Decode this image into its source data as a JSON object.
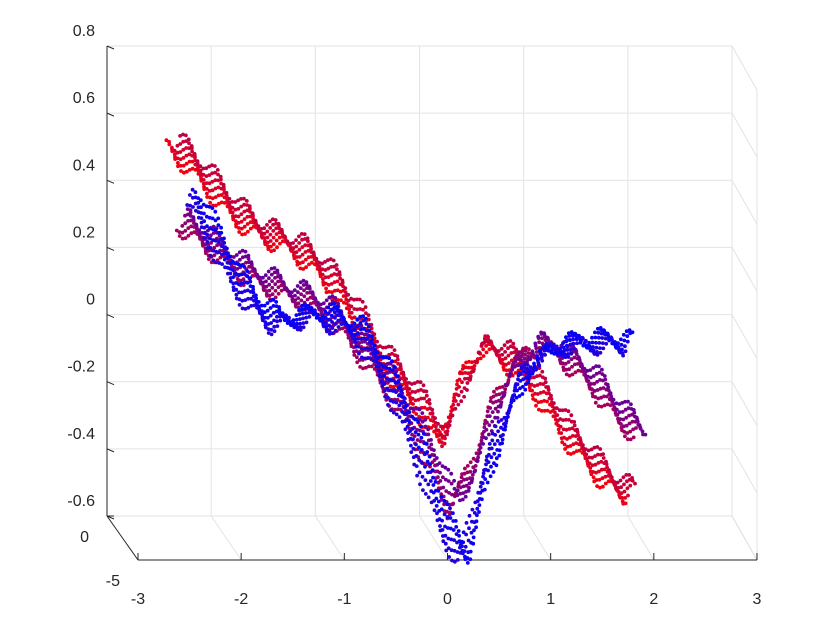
{
  "chart_data": {
    "type": "scatter",
    "title": "",
    "xlabel": "",
    "ylabel": "",
    "zlabel": "",
    "view": "3d-perspective",
    "grid": true,
    "legend": "none",
    "colormap": {
      "start": "#ff0000",
      "end": "#0000ff"
    },
    "xlim": [
      -3,
      3
    ],
    "xticks": [
      -3,
      -2,
      -1,
      0,
      1,
      2,
      3
    ],
    "xtick_labels": [
      "-3",
      "-2",
      "-1",
      "0",
      "1",
      "2",
      "3"
    ],
    "ylim": [
      -5,
      0
    ],
    "yticks": [
      -5,
      0
    ],
    "ytick_labels": [
      "-5",
      "0"
    ],
    "zlim": [
      -0.6,
      0.8
    ],
    "zticks": [
      -0.6,
      -0.4,
      -0.2,
      0,
      0.2,
      0.4,
      0.6,
      0.8
    ],
    "ztick_labels": [
      "-0.6",
      "-0.4",
      "-0.2",
      "0",
      "0.2",
      "0.4",
      "0.6",
      "0.8"
    ],
    "series": [
      {
        "color": "#ff0000",
        "x": [
          -2.5,
          -2.3,
          -2.1,
          -1.9,
          -1.7,
          -1.5,
          -1.3,
          -1.1,
          -0.9,
          -0.7,
          -0.5,
          -0.3,
          -0.1,
          0.1,
          0.3,
          0.5,
          0.7,
          0.9,
          1.1,
          1.3,
          1.5,
          1.7,
          1.9
        ],
        "z": [
          0.58,
          0.52,
          0.45,
          0.38,
          0.33,
          0.3,
          0.27,
          0.22,
          0.15,
          0.05,
          -0.05,
          -0.12,
          -0.2,
          -0.3,
          -0.12,
          -0.02,
          -0.05,
          -0.1,
          -0.18,
          -0.28,
          -0.35,
          -0.42,
          -0.46
        ]
      },
      {
        "color": "#c0143f",
        "x": [
          -2.4,
          -2.2,
          -2.0,
          -1.8,
          -1.6,
          -1.4,
          -1.2,
          -1.0,
          -0.8,
          -0.6,
          -0.4,
          -0.2,
          0.0,
          0.2,
          0.4,
          0.6,
          0.8,
          1.0,
          1.2,
          1.4,
          1.6,
          1.8,
          2.0
        ],
        "z": [
          0.35,
          0.3,
          0.25,
          0.2,
          0.17,
          0.14,
          0.12,
          0.08,
          0.02,
          -0.06,
          -0.14,
          -0.24,
          -0.36,
          -0.5,
          -0.38,
          -0.2,
          -0.08,
          -0.02,
          -0.03,
          -0.08,
          -0.14,
          -0.22,
          -0.28
        ]
      },
      {
        "color": "#0000ff",
        "x": [
          -2.3,
          -2.1,
          -1.9,
          -1.7,
          -1.5,
          -1.3,
          -1.1,
          -0.9,
          -0.7,
          -0.5,
          -0.3,
          -0.1,
          0.1,
          0.3,
          0.5,
          0.7,
          0.9,
          1.1,
          1.3,
          1.5,
          1.7,
          1.9
        ],
        "z": [
          0.42,
          0.3,
          0.18,
          0.1,
          0.05,
          0.06,
          0.07,
          0.05,
          0.02,
          -0.08,
          -0.2,
          -0.36,
          -0.54,
          -0.66,
          -0.42,
          -0.24,
          -0.1,
          -0.04,
          -0.02,
          -0.01,
          -0.01,
          -0.02
        ]
      }
    ]
  }
}
